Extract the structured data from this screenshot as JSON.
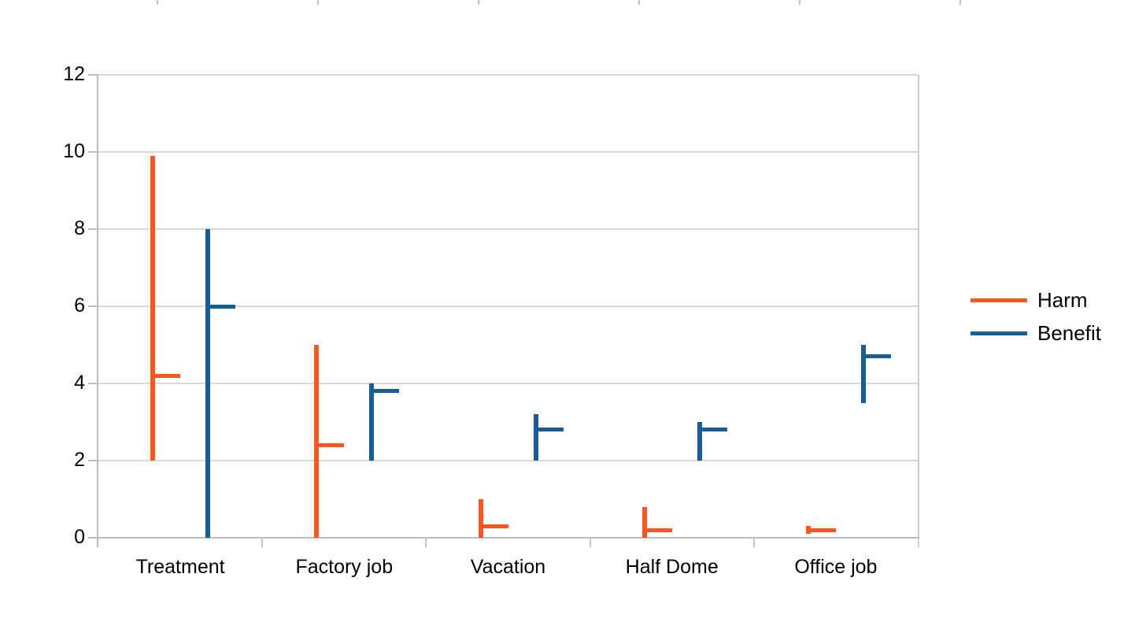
{
  "chart_data": {
    "type": "hlc-stock",
    "title": "",
    "xlabel": "",
    "ylabel": "",
    "categories": [
      "Treatment",
      "Factory job",
      "Vacation",
      "Half Dome",
      "Office job"
    ],
    "series": [
      {
        "name": "Harm",
        "color": "#fc5722",
        "low": [
          2.0,
          0.0,
          0.0,
          0.0,
          0.1
        ],
        "high": [
          9.9,
          5.0,
          1.0,
          0.8,
          0.3
        ],
        "close": [
          4.2,
          2.4,
          0.3,
          0.2,
          0.2
        ]
      },
      {
        "name": "Benefit",
        "color": "#175e95",
        "low": [
          0.0,
          2.0,
          2.0,
          2.0,
          3.5
        ],
        "high": [
          8.0,
          4.0,
          3.2,
          3.0,
          5.0
        ],
        "close": [
          6.0,
          3.8,
          2.8,
          2.8,
          4.7
        ]
      }
    ],
    "ylim": [
      0,
      12
    ],
    "yticks": [
      0,
      2,
      4,
      6,
      8,
      10,
      12
    ],
    "grid": true,
    "legend_position": "right",
    "legend_items": [
      "Harm",
      "Benefit"
    ]
  },
  "top_edge_tick_positions": [
    200,
    404,
    608,
    812,
    1016,
    1220
  ]
}
